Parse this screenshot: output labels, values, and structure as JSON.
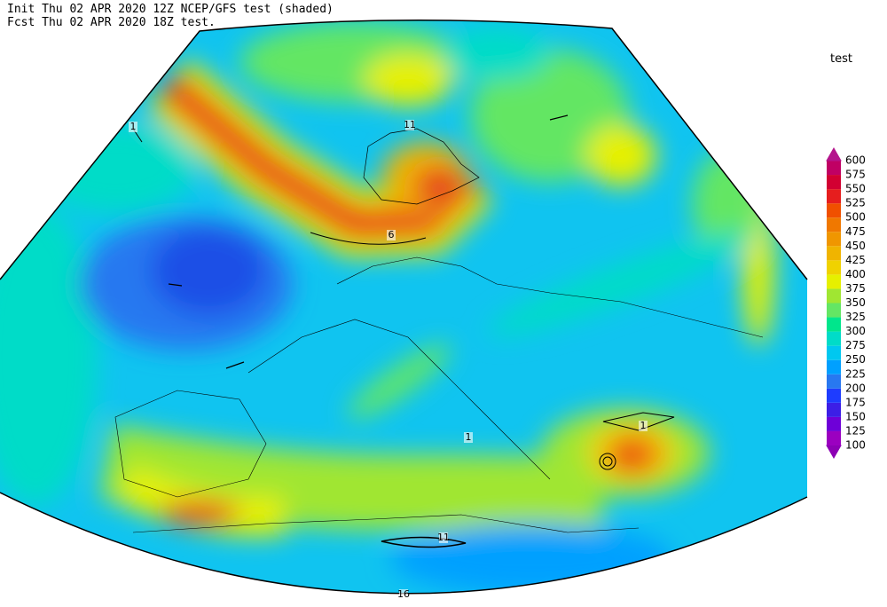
{
  "header": {
    "line1": "Init  Thu 02 APR 2020 12Z  NCEP/GFS test (shaded)",
    "line2": "Fcst Thu 02 APR 2020 18Z  test."
  },
  "colorbar": {
    "title": "test",
    "levels": [
      100,
      125,
      150,
      175,
      200,
      225,
      250,
      275,
      300,
      325,
      350,
      375,
      400,
      425,
      450,
      475,
      500,
      525,
      550,
      575,
      600
    ],
    "colors": [
      "#8c00b4",
      "#9b00c0",
      "#6e00d8",
      "#3c1ee6",
      "#1e3cff",
      "#2878f0",
      "#00a0ff",
      "#00c8f0",
      "#00dcc8",
      "#00e68c",
      "#64e664",
      "#a0e632",
      "#e6f000",
      "#f0d200",
      "#f0b400",
      "#f09600",
      "#f07800",
      "#f05000",
      "#e61e1e",
      "#d20032",
      "#c00064",
      "#b4148c"
    ]
  },
  "contour_labels": [
    "1",
    "11",
    "6",
    "1",
    "1",
    "11",
    "16"
  ]
}
